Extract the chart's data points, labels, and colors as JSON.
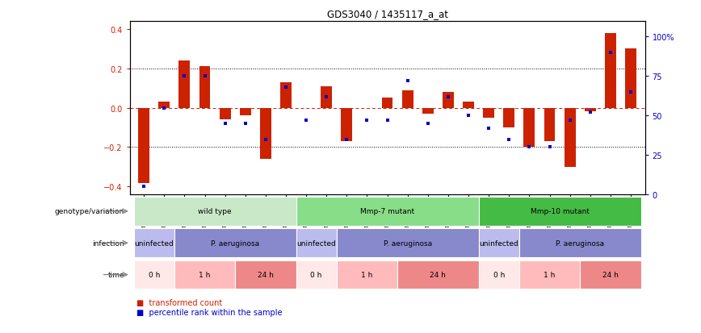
{
  "title": "GDS3040 / 1435117_a_at",
  "samples": [
    "GSM196062",
    "GSM196063",
    "GSM196064",
    "GSM196065",
    "GSM196066",
    "GSM196067",
    "GSM196068",
    "GSM196069",
    "GSM196070",
    "GSM196071",
    "GSM196072",
    "GSM196073",
    "GSM196074",
    "GSM196075",
    "GSM196076",
    "GSM196077",
    "GSM196078",
    "GSM196079",
    "GSM196080",
    "GSM196081",
    "GSM196082",
    "GSM196083",
    "GSM196084",
    "GSM196085",
    "GSM196086"
  ],
  "bar_values": [
    -0.38,
    0.03,
    0.24,
    0.21,
    -0.06,
    -0.04,
    -0.26,
    0.13,
    0.0,
    0.11,
    -0.17,
    0.0,
    0.05,
    0.09,
    -0.03,
    0.08,
    0.03,
    -0.05,
    -0.1,
    -0.2,
    -0.17,
    -0.3,
    -0.02,
    0.38,
    0.3
  ],
  "blue_values": [
    5,
    55,
    75,
    75,
    45,
    45,
    35,
    68,
    47,
    62,
    35,
    47,
    47,
    72,
    45,
    62,
    50,
    42,
    35,
    30,
    30,
    47,
    52,
    90,
    65
  ],
  "bar_color": "#cc2200",
  "blue_color": "#0000cc",
  "ylim": [
    -0.44,
    0.44
  ],
  "y2lim": [
    0,
    110
  ],
  "yticks": [
    -0.4,
    -0.2,
    0.0,
    0.2,
    0.4
  ],
  "y2ticks": [
    0,
    25,
    50,
    75,
    100
  ],
  "y2ticklabels": [
    "0",
    "25",
    "50",
    "75",
    "100%"
  ],
  "dotted_lines_dotted": [
    -0.2,
    0.2
  ],
  "dotted_lines_dashed": [
    0.0
  ],
  "genotype_groups": [
    {
      "label": "wild type",
      "start": 0,
      "end": 8,
      "color": "#c8e8c8"
    },
    {
      "label": "Mmp-7 mutant",
      "start": 8,
      "end": 17,
      "color": "#88dd88"
    },
    {
      "label": "Mmp-10 mutant",
      "start": 17,
      "end": 25,
      "color": "#44bb44"
    }
  ],
  "infection_groups": [
    {
      "label": "uninfected",
      "start": 0,
      "end": 2,
      "color": "#bbbbee"
    },
    {
      "label": "P. aeruginosa",
      "start": 2,
      "end": 8,
      "color": "#8888cc"
    },
    {
      "label": "uninfected",
      "start": 8,
      "end": 10,
      "color": "#bbbbee"
    },
    {
      "label": "P. aeruginosa",
      "start": 10,
      "end": 17,
      "color": "#8888cc"
    },
    {
      "label": "uninfected",
      "start": 17,
      "end": 19,
      "color": "#bbbbee"
    },
    {
      "label": "P. aeruginosa",
      "start": 19,
      "end": 25,
      "color": "#8888cc"
    }
  ],
  "time_groups": [
    {
      "label": "0 h",
      "start": 0,
      "end": 2,
      "color": "#ffe8e8"
    },
    {
      "label": "1 h",
      "start": 2,
      "end": 5,
      "color": "#ffbbbb"
    },
    {
      "label": "24 h",
      "start": 5,
      "end": 8,
      "color": "#ee8888"
    },
    {
      "label": "0 h",
      "start": 8,
      "end": 10,
      "color": "#ffe8e8"
    },
    {
      "label": "1 h",
      "start": 10,
      "end": 13,
      "color": "#ffbbbb"
    },
    {
      "label": "24 h",
      "start": 13,
      "end": 17,
      "color": "#ee8888"
    },
    {
      "label": "0 h",
      "start": 17,
      "end": 19,
      "color": "#ffe8e8"
    },
    {
      "label": "1 h",
      "start": 19,
      "end": 22,
      "color": "#ffbbbb"
    },
    {
      "label": "24 h",
      "start": 22,
      "end": 25,
      "color": "#ee8888"
    }
  ],
  "row_labels": [
    "genotype/variation",
    "infection",
    "time"
  ],
  "legend_items": [
    {
      "color": "#cc2200",
      "label": "transformed count"
    },
    {
      "color": "#0000cc",
      "label": "percentile rank within the sample"
    }
  ],
  "bg_color": "#ffffff",
  "label_arrow_color": "#888888"
}
